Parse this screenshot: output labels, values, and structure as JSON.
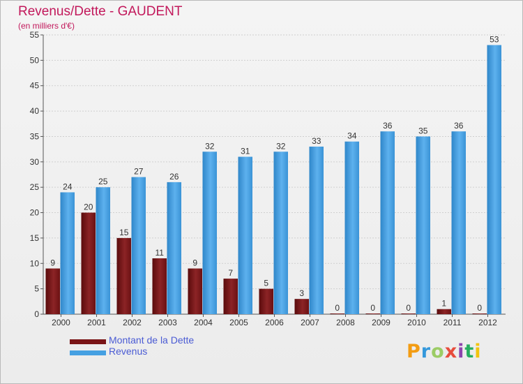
{
  "header": {
    "title": "Revenus/Dette - GAUDENT",
    "subtitle": "(en milliers d'€)"
  },
  "brand": {
    "text": "Proxiti"
  },
  "colors": {
    "dette": "#7a1416",
    "revenus": "#45a0e2",
    "axis": "#555555",
    "grid": "#cfcfcf"
  },
  "chart_data": {
    "type": "bar",
    "title": "Revenus/Dette - GAUDENT",
    "subtitle": "(en milliers d'€)",
    "xlabel": "",
    "ylabel": "",
    "categories": [
      "2000",
      "2001",
      "2002",
      "2003",
      "2004",
      "2005",
      "2006",
      "2007",
      "2008",
      "2009",
      "2010",
      "2011",
      "2012"
    ],
    "series": [
      {
        "name": "Montant de la Dette",
        "values": [
          9,
          20,
          15,
          11,
          9,
          7,
          5,
          3,
          0,
          0,
          0,
          1,
          0
        ]
      },
      {
        "name": "Revenus",
        "values": [
          24,
          25,
          27,
          26,
          32,
          31,
          32,
          33,
          34,
          36,
          35,
          36,
          53
        ]
      }
    ],
    "ylim": [
      0,
      55
    ],
    "yticks": [
      0,
      5,
      10,
      15,
      20,
      25,
      30,
      35,
      40,
      45,
      50,
      55
    ],
    "grid": true,
    "legend": "bottom-left"
  }
}
